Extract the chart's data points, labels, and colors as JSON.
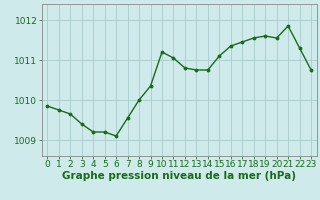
{
  "x": [
    0,
    1,
    2,
    3,
    4,
    5,
    6,
    7,
    8,
    9,
    10,
    11,
    12,
    13,
    14,
    15,
    16,
    17,
    18,
    19,
    20,
    21,
    22,
    23
  ],
  "y": [
    1009.85,
    1009.75,
    1009.65,
    1009.4,
    1009.2,
    1009.2,
    1009.1,
    1009.55,
    1010.0,
    1010.35,
    1011.2,
    1011.05,
    1010.8,
    1010.75,
    1010.75,
    1011.1,
    1011.35,
    1011.45,
    1011.55,
    1011.6,
    1011.55,
    1011.85,
    1011.3,
    1010.75
  ],
  "line_color": "#1a6b1a",
  "marker": ".",
  "marker_color": "#1a6b1a",
  "marker_size": 3.5,
  "bg_color": "#ceeaea",
  "grid_color": "#aacccc",
  "axis_color": "#888888",
  "xlabel": "Graphe pression niveau de la mer (hPa)",
  "xlabel_fontsize": 7.5,
  "xlabel_color": "#1a6b1a",
  "tick_label_color": "#1a6b1a",
  "tick_fontsize": 6.5,
  "ylim": [
    1008.6,
    1012.4
  ],
  "yticks": [
    1009,
    1010,
    1011,
    1012
  ],
  "xlim": [
    -0.5,
    23.5
  ],
  "xticks": [
    0,
    1,
    2,
    3,
    4,
    5,
    6,
    7,
    8,
    9,
    10,
    11,
    12,
    13,
    14,
    15,
    16,
    17,
    18,
    19,
    20,
    21,
    22,
    23
  ],
  "line_width": 1.0
}
